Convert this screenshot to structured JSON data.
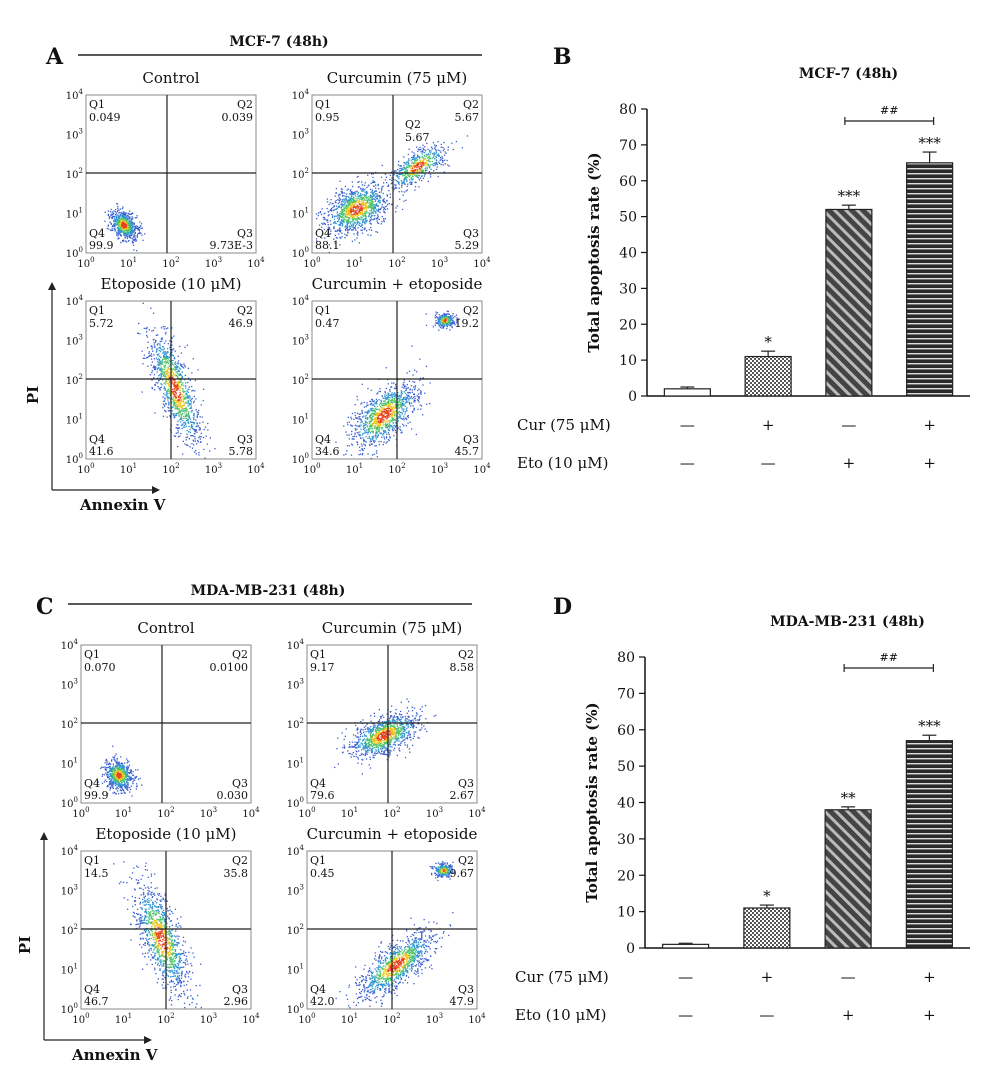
{
  "panels": [
    {
      "letter": "A",
      "title": "MCF-7 (48h)",
      "xlabel": "Annexin V",
      "ylabel": "PI",
      "ticks": [
        "10",
        "10",
        "10",
        "10",
        "10"
      ],
      "tick_exp": [
        "0",
        "1",
        "2",
        "3",
        "4"
      ],
      "plots": [
        {
          "title": "Control",
          "q1": "0.049",
          "q2": "0.039",
          "q3": "9.73E-3",
          "q4": "99.9",
          "q2b": ""
        },
        {
          "title": "Curcumin (75 μM)",
          "q1": "0.95",
          "q2": "5.67",
          "q3": "5.29",
          "q4": "88.1",
          "q2b": "5.67"
        },
        {
          "title": "Etoposide (10 μM)",
          "q1": "5.72",
          "q2": "46.9",
          "q3": "5.78",
          "q4": "41.6",
          "q2b": ""
        },
        {
          "title": "Curcumin + etoposide",
          "q1": "0.47",
          "q2": "19.2",
          "q3": "45.7",
          "q4": "34.6",
          "q2b": ""
        }
      ],
      "quad_labels": [
        "Q1",
        "Q2",
        "Q3",
        "Q4"
      ]
    },
    {
      "letter": "C",
      "title": "MDA-MB-231 (48h)",
      "xlabel": "Annexin V",
      "ylabel": "PI",
      "ticks": [
        "10",
        "10",
        "10",
        "10",
        "10"
      ],
      "tick_exp": [
        "0",
        "1",
        "2",
        "3",
        "4"
      ],
      "plots": [
        {
          "title": "Control",
          "q1": "0.070",
          "q2": "0.0100",
          "q3": "0.030",
          "q4": "99.9",
          "q2b": ""
        },
        {
          "title": "Curcumin (75 μM)",
          "q1": "9.17",
          "q2": "8.58",
          "q3": "2.67",
          "q4": "79.6",
          "q2b": ""
        },
        {
          "title": "Etoposide (10 μM)",
          "q1": "14.5",
          "q2": "35.8",
          "q3": "2.96",
          "q4": "46.7",
          "q2b": ""
        },
        {
          "title": "Curcumin + etoposide",
          "q1": "0.45",
          "q2": "9.67",
          "q3": "47.9",
          "q4": "42.0",
          "q2b": ""
        }
      ],
      "quad_labels": [
        "Q1",
        "Q2",
        "Q3",
        "Q4"
      ]
    }
  ],
  "chart_data": [
    {
      "type": "bar",
      "letter": "B",
      "title": "MCF-7 (48h)",
      "ylabel": "Total apoptosis rate (%)",
      "ylim": [
        0,
        80
      ],
      "yticks": [
        0,
        10,
        20,
        30,
        40,
        50,
        60,
        70,
        80
      ],
      "values": [
        2,
        11,
        52,
        65
      ],
      "errors": [
        0.5,
        1.5,
        1.2,
        3
      ],
      "sig": [
        "",
        "*",
        "***",
        "***"
      ],
      "bracket_label": "##",
      "row_labels": [
        "Cur (75 μM)",
        "Eto (10 μM)"
      ],
      "row_signs": [
        [
          "—",
          "+",
          "—",
          "+"
        ],
        [
          "—",
          "—",
          "+",
          "+"
        ]
      ]
    },
    {
      "type": "bar",
      "letter": "D",
      "title": "MDA-MB-231 (48h)",
      "ylabel": "Total apoptosis rate (%)",
      "ylim": [
        0,
        80
      ],
      "yticks": [
        0,
        10,
        20,
        30,
        40,
        50,
        60,
        70,
        80
      ],
      "values": [
        1,
        11,
        38,
        57
      ],
      "errors": [
        0.3,
        0.8,
        0.8,
        1.5
      ],
      "sig": [
        "",
        "*",
        "**",
        "***"
      ],
      "bracket_label": "##",
      "row_labels": [
        "Cur (75 μM)",
        "Eto (10 μM)"
      ],
      "row_signs": [
        [
          "—",
          "+",
          "—",
          "+"
        ],
        [
          "—",
          "—",
          "+",
          "+"
        ]
      ]
    }
  ]
}
